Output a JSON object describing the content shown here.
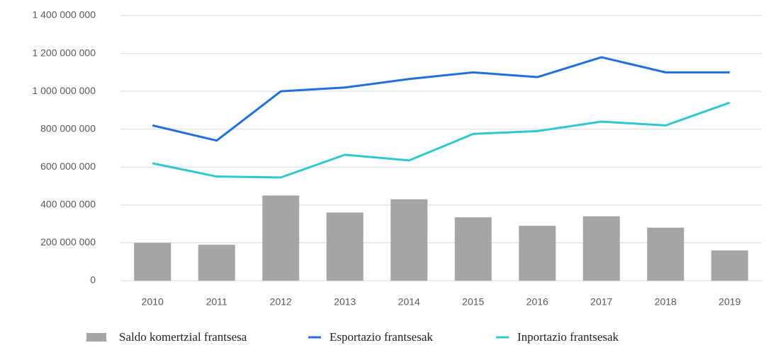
{
  "chart_data": {
    "type": "combo",
    "categories": [
      "2010",
      "2011",
      "2012",
      "2013",
      "2014",
      "2015",
      "2016",
      "2017",
      "2018",
      "2019"
    ],
    "series": [
      {
        "name": "Saldo komertzial frantsesa",
        "type": "bar",
        "color": "#a5a5a5",
        "values": [
          200000000,
          190000000,
          450000000,
          360000000,
          430000000,
          335000000,
          290000000,
          340000000,
          280000000,
          160000000
        ]
      },
      {
        "name": "Esportazio frantsesak",
        "type": "line",
        "color": "#1f6fe0",
        "values": [
          820000000,
          740000000,
          1000000000,
          1020000000,
          1065000000,
          1100000000,
          1075000000,
          1180000000,
          1100000000,
          1100000000
        ]
      },
      {
        "name": "Inportazio frantsesak",
        "type": "line",
        "color": "#2ec8d0",
        "values": [
          620000000,
          550000000,
          545000000,
          665000000,
          635000000,
          775000000,
          790000000,
          840000000,
          820000000,
          940000000
        ]
      }
    ],
    "ylim": [
      0,
      1400000000
    ],
    "yticks": [
      0,
      {
        "value": 200000000,
        "label": "200 000 000"
      },
      {
        "value": 400000000,
        "label": "400 000 000"
      },
      {
        "value": 600000000,
        "label": "600 000 000"
      },
      {
        "value": 800000000,
        "label": "800 000 000"
      },
      {
        "value": 1000000000,
        "label": "1 000 000 000"
      },
      {
        "value": 1200000000,
        "label": "1 200 000 000"
      },
      {
        "value": 1400000000,
        "label": "1 400 000 000"
      }
    ],
    "grid": true,
    "legend": "bottom"
  }
}
